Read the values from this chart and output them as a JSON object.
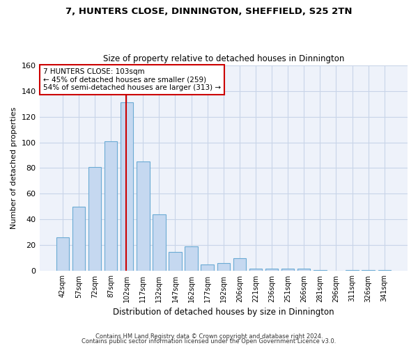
{
  "title1": "7, HUNTERS CLOSE, DINNINGTON, SHEFFIELD, S25 2TN",
  "title2": "Size of property relative to detached houses in Dinnington",
  "xlabel": "Distribution of detached houses by size in Dinnington",
  "ylabel": "Number of detached properties",
  "categories": [
    "42sqm",
    "57sqm",
    "72sqm",
    "87sqm",
    "102sqm",
    "117sqm",
    "132sqm",
    "147sqm",
    "162sqm",
    "177sqm",
    "192sqm",
    "206sqm",
    "221sqm",
    "236sqm",
    "251sqm",
    "266sqm",
    "281sqm",
    "296sqm",
    "311sqm",
    "326sqm",
    "341sqm"
  ],
  "values": [
    26,
    50,
    81,
    101,
    131,
    85,
    44,
    15,
    19,
    5,
    6,
    10,
    2,
    2,
    2,
    2,
    1,
    0,
    1,
    1,
    1
  ],
  "bar_color": "#c5d8f0",
  "bar_edge_color": "#6aaad4",
  "highlight_index": 4,
  "highlight_line_color": "#cc0000",
  "annotation_text": "7 HUNTERS CLOSE: 103sqm\n← 45% of detached houses are smaller (259)\n54% of semi-detached houses are larger (313) →",
  "annotation_box_color": "#ffffff",
  "annotation_box_edge_color": "#cc0000",
  "ylim": [
    0,
    160
  ],
  "yticks": [
    0,
    20,
    40,
    60,
    80,
    100,
    120,
    140,
    160
  ],
  "grid_color": "#c8d4e8",
  "background_color": "#eef2fa",
  "footer1": "Contains HM Land Registry data © Crown copyright and database right 2024.",
  "footer2": "Contains public sector information licensed under the Open Government Licence v3.0."
}
